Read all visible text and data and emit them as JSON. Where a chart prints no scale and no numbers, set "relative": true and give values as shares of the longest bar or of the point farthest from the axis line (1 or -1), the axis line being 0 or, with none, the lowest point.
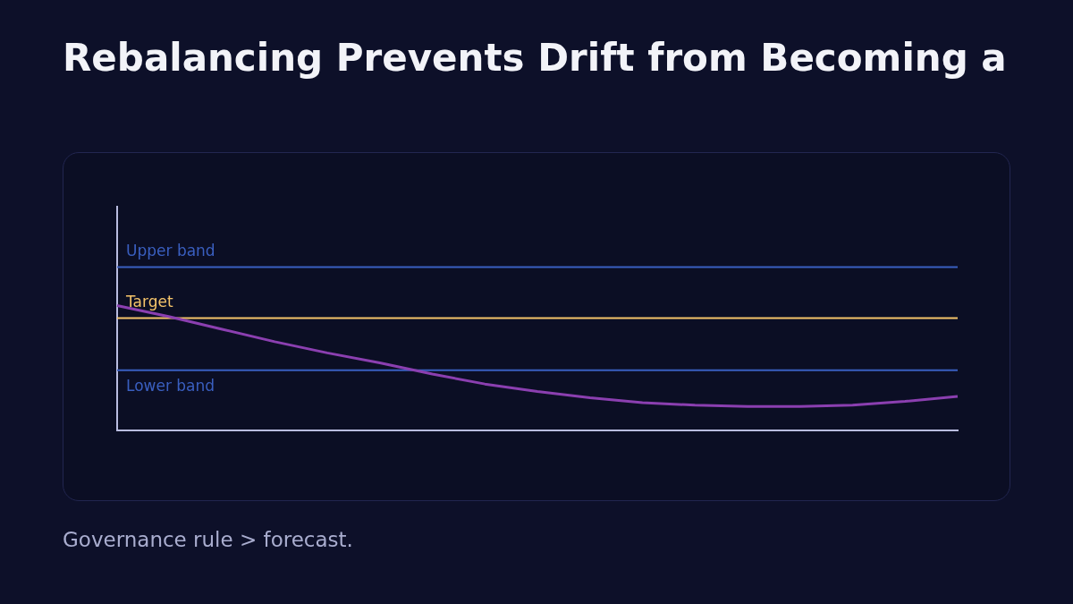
{
  "chart_data": {
    "type": "line",
    "relative": true,
    "title": "Rebalancing Prevents Drift from Becoming a",
    "categories": [
      null,
      null,
      null,
      null,
      null,
      null,
      null,
      null,
      null,
      null,
      null,
      null,
      null,
      null,
      null,
      null,
      null
    ],
    "series": [
      {
        "color": "#8b3fb0",
        "values": [
          1,
          0.91,
          0.81,
          0.71,
          0.62,
          0.54,
          0.45,
          0.37,
          0.31,
          0.26,
          0.22,
          0.2,
          0.19,
          0.19,
          0.2,
          0.23,
          0.27
        ]
      }
    ],
    "ref_lines": [
      {
        "axis": "y",
        "value": 1.31,
        "label": "Upper band",
        "color": "#3a5fc0"
      },
      {
        "axis": "y",
        "value": 0.9,
        "label": "Target",
        "color": "#f5c46a"
      },
      {
        "axis": "y",
        "value": 0.48,
        "label": "Lower band",
        "color": "#3a5fc0"
      }
    ],
    "annotations": [
      "Governance rule > forecast."
    ],
    "grid": false,
    "legend": false,
    "marker": "none",
    "line_style": "solid"
  }
}
